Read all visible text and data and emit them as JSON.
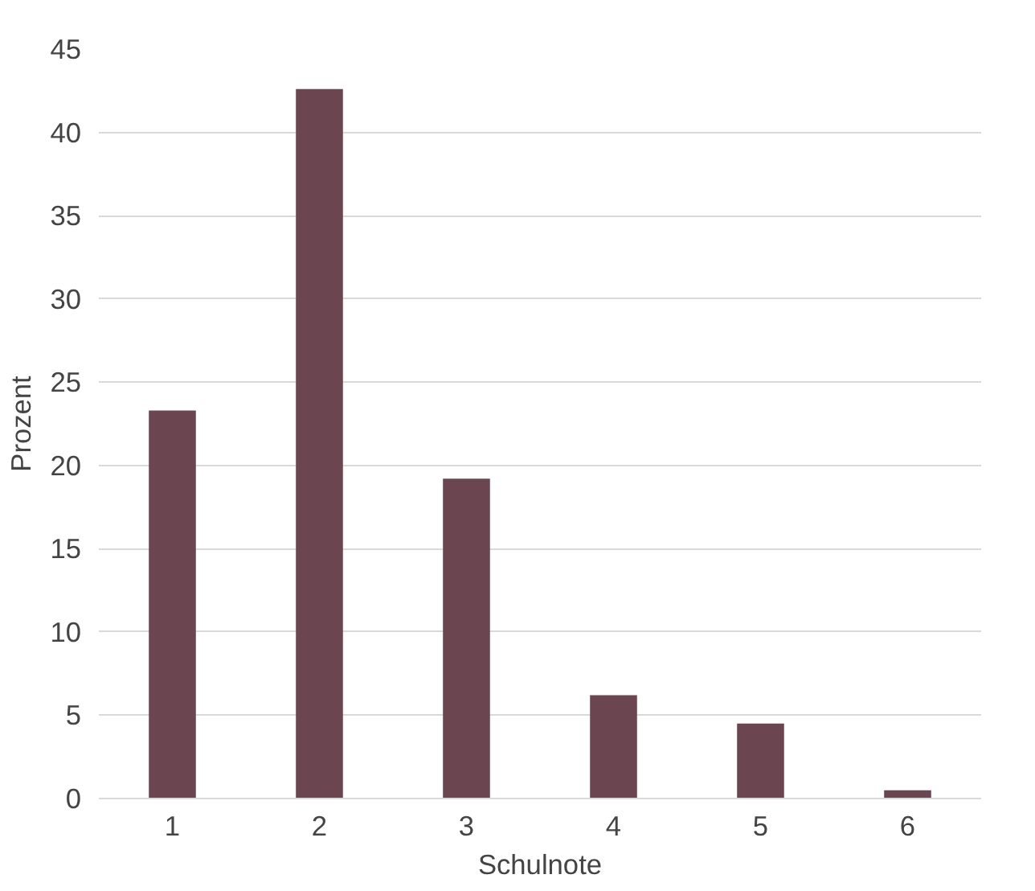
{
  "chart_data": {
    "type": "bar",
    "xlabel": "Schulnote",
    "ylabel": "Prozent",
    "categories": [
      "1",
      "2",
      "3",
      "4",
      "5",
      "6"
    ],
    "values": [
      23.3,
      42.6,
      19.2,
      6.2,
      4.5,
      0.5
    ],
    "color": "#6b4650",
    "ylim": [
      0,
      45
    ],
    "yticks": [
      0,
      5,
      10,
      15,
      20,
      25,
      30,
      35,
      40,
      45
    ],
    "grid": "y"
  }
}
